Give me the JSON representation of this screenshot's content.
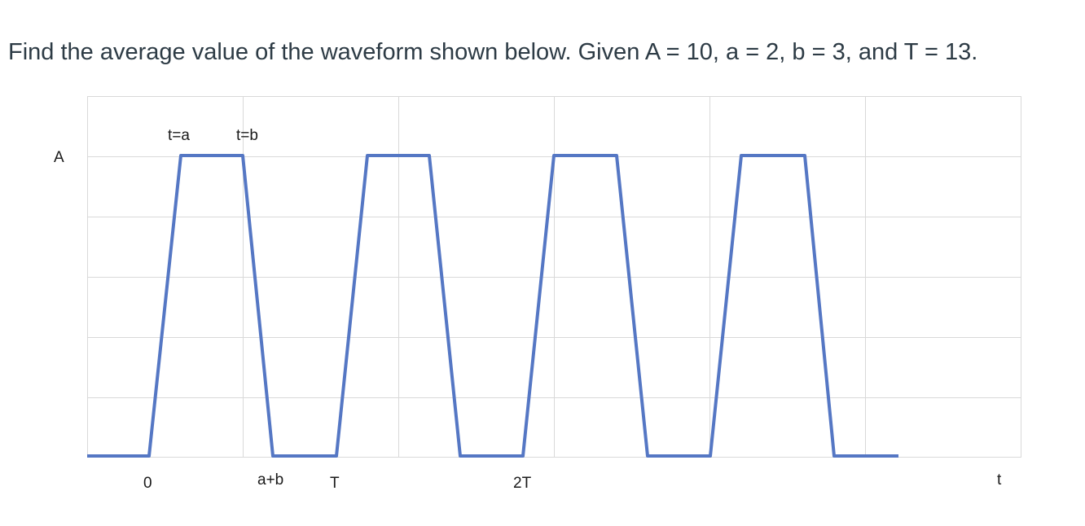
{
  "question": "Find the average value of the waveform shown below. Given A = 10, a = 2, b = 3, and T = 13.",
  "diagram": {
    "y_label": "A",
    "x_label": "t",
    "top_labels": [
      "t=a",
      "t=b"
    ],
    "bottom_labels": [
      "0",
      "a+b",
      "T",
      "2T"
    ],
    "colors": {
      "waveform": "#5577c4",
      "grid": "#d9d9d9"
    }
  }
}
